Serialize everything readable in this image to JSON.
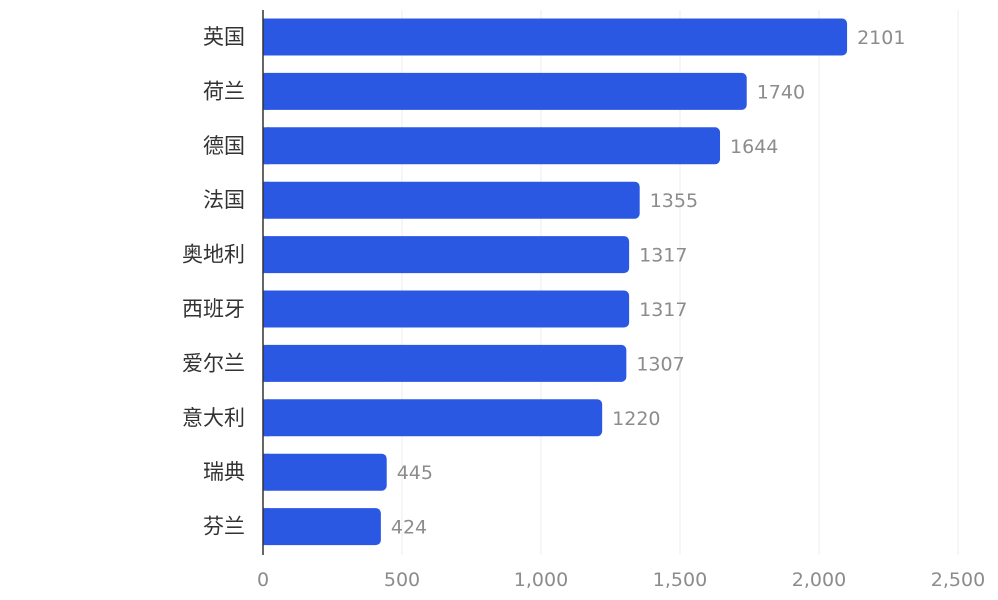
{
  "chart_data": {
    "type": "bar",
    "orientation": "horizontal",
    "categories": [
      "英国",
      "荷兰",
      "德国",
      "法国",
      "奥地利",
      "西班牙",
      "爱尔兰",
      "意大利",
      "瑞典",
      "芬兰"
    ],
    "values": [
      2101,
      1740,
      1644,
      1355,
      1317,
      1317,
      1307,
      1220,
      445,
      424
    ],
    "value_labels": [
      "2101",
      "1740",
      "1644",
      "1355",
      "1317",
      "1317",
      "1307",
      "1220",
      "445",
      "424"
    ],
    "xlim": [
      0,
      2500
    ],
    "x_ticks": [
      0,
      500,
      1000,
      1500,
      2000,
      2500
    ],
    "x_tick_labels": [
      "0",
      "500",
      "1,000",
      "1,500",
      "2,000",
      "2,500"
    ],
    "bar_color": "#2b58e2",
    "grid": true,
    "title": "",
    "xlabel": "",
    "ylabel": ""
  }
}
